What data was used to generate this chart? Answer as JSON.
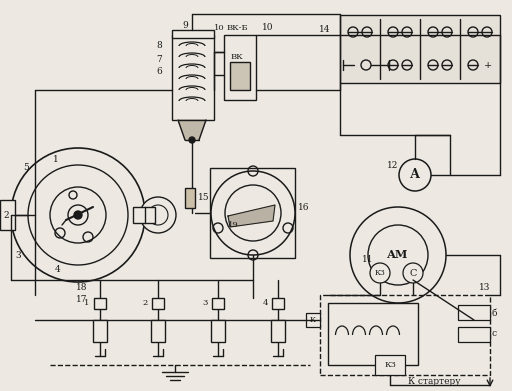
{
  "bg_color": "#ede9e2",
  "line_color": "#1a1a1a",
  "lw": 1.0,
  "figsize": [
    5.12,
    3.91
  ],
  "dpi": 100,
  "labels": {
    "vkb": "ВК-Б",
    "vk": "ВК",
    "am": "АМ",
    "kz": "КЗ",
    "c_letter": "С",
    "a_letter": "А",
    "starter": "К стартеру",
    "b_letter": "б",
    "c2_letter": "с"
  },
  "numbers": [
    "1",
    "2",
    "3",
    "4",
    "5",
    "6",
    "7",
    "8",
    "9",
    "10",
    "11",
    "12",
    "13",
    "14",
    "15",
    "16",
    "17",
    "18",
    "19"
  ],
  "plug_labels": [
    "1",
    "2",
    "3",
    "4"
  ]
}
